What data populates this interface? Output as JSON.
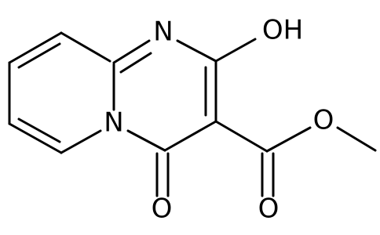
{
  "atoms": [
    {
      "label": "N"
    },
    {
      "label": "OH"
    },
    {
      "label": "N"
    },
    {
      "label": "O"
    },
    {
      "label": "O"
    },
    {
      "label": "O"
    }
  ]
}
